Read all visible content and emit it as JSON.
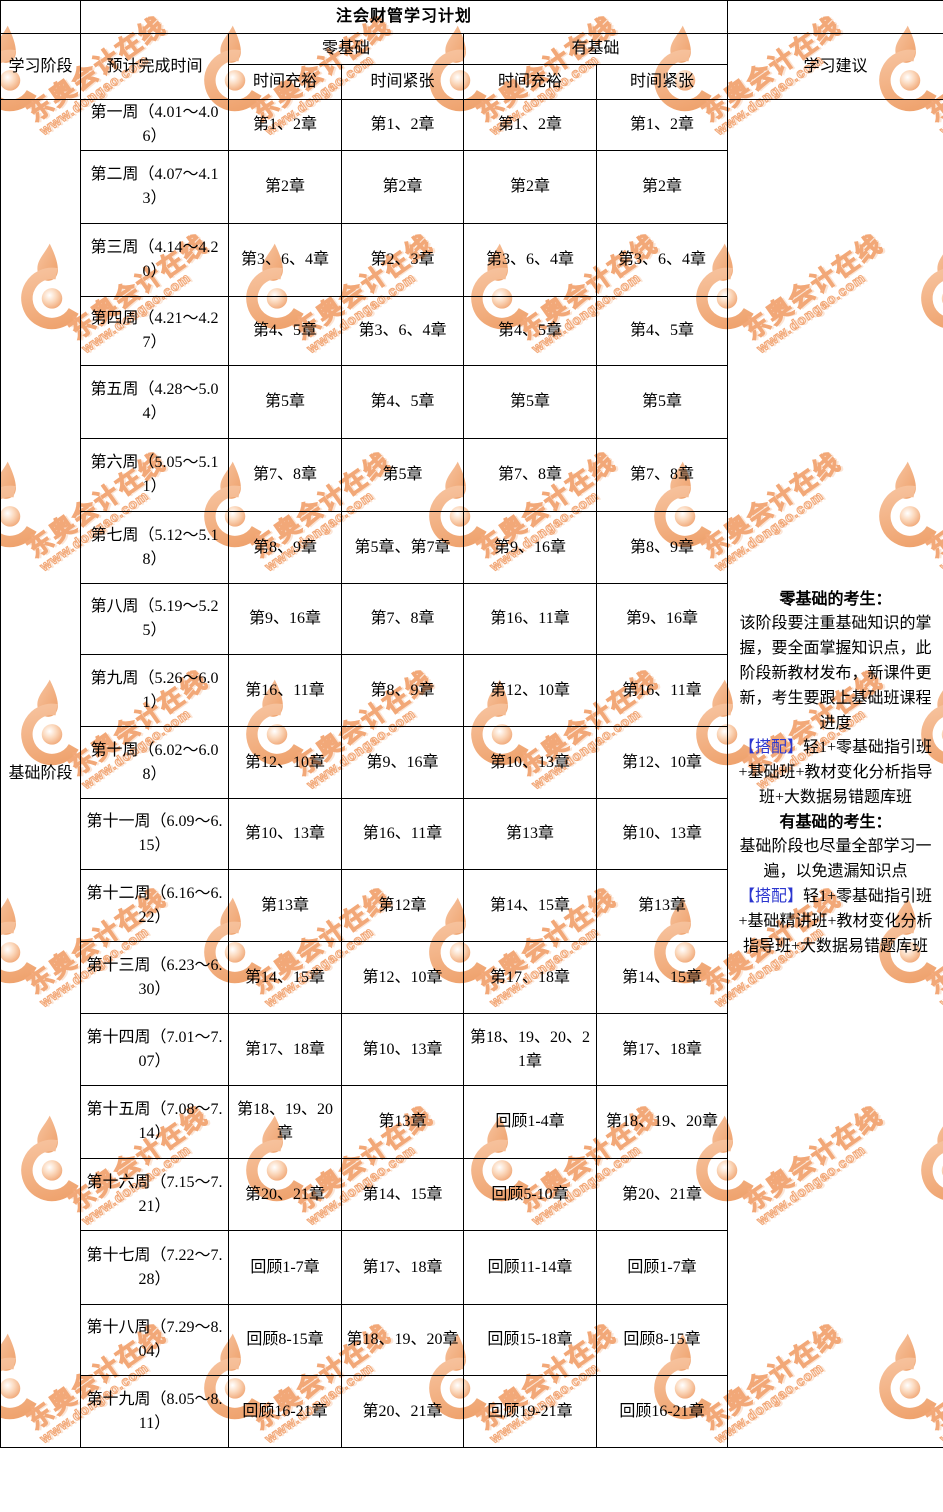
{
  "title": "注会财管学习计划",
  "headers": {
    "stage": "学习阶段",
    "expected_time": "预计完成时间",
    "zero_basis": "零基础",
    "with_basis": "有基础",
    "ample": "时间充裕",
    "tight": "时间紧张",
    "suggestion": "学习建议"
  },
  "stage_label": "基础阶段",
  "rows": [
    {
      "week": "第一周（4.01～4.06）",
      "cells": [
        "第1、2章",
        "第1、2章",
        "第1、2章",
        "第1、2章"
      ]
    },
    {
      "week": "第二周（4.07～4.13）",
      "cells": [
        "第2章",
        "第2章",
        "第2章",
        "第2章"
      ]
    },
    {
      "week": "第三周（4.14～4.20）",
      "cells": [
        "第3、6、4章",
        "第2、3章",
        "第3、6、4章",
        "第3、6、4章"
      ]
    },
    {
      "week": "第四周（4.21～4.27）",
      "cells": [
        "第4、5章",
        "第3、6、4章",
        "第4、5章",
        "第4、5章"
      ]
    },
    {
      "week": "第五周（4.28～5.04）",
      "cells": [
        "第5章",
        "第4、5章",
        "第5章",
        "第5章"
      ]
    },
    {
      "week": "第六周（5.05～5.11）",
      "cells": [
        "第7、8章",
        "第5章",
        "第7、8章",
        "第7、8章"
      ]
    },
    {
      "week": "第七周（5.12～5.18）",
      "cells": [
        "第8、9章",
        "第5章、第7章",
        "第9、16章",
        "第8、9章"
      ]
    },
    {
      "week": "第八周（5.19～5.25）",
      "cells": [
        "第9、16章",
        "第7、8章",
        "第16、11章",
        "第9、16章"
      ]
    },
    {
      "week": "第九周（5.26～6.01）",
      "cells": [
        "第16、11章",
        "第8、9章",
        "第12、10章",
        "第16、11章"
      ]
    },
    {
      "week": "第十周（6.02～6.08）",
      "cells": [
        "第12、10章",
        "第9、16章",
        "第10、13章",
        "第12、10章"
      ]
    },
    {
      "week": "第十一周（6.09～6.15）",
      "cells": [
        "第10、13章",
        "第16、11章",
        "第13章",
        "第10、13章"
      ]
    },
    {
      "week": "第十二周（6.16～6.22）",
      "cells": [
        "第13章",
        "第12章",
        "第14、15章",
        "第13章"
      ]
    },
    {
      "week": "第十三周（6.23～6.30）",
      "cells": [
        "第14、15章",
        "第12、10章",
        "第17、18章",
        "第14、15章"
      ]
    },
    {
      "week": "第十四周（7.01～7.07）",
      "cells": [
        "第17、18章",
        "第10、13章",
        "第18、19、20、21章",
        "第17、18章"
      ]
    },
    {
      "week": "第十五周（7.08～7.14）",
      "cells": [
        "第18、19、20章",
        "第13章",
        "回顾1-4章",
        "第18、19、20章"
      ]
    },
    {
      "week": "第十六周（7.15～7.21）",
      "cells": [
        "第20、21章",
        "第14、15章",
        "回顾5-10章",
        "第20、21章"
      ]
    },
    {
      "week": "第十七周（7.22～7.28）",
      "cells": [
        "回顾1-7章",
        "第17、18章",
        "回顾11-14章",
        "回顾1-7章"
      ]
    },
    {
      "week": "第十八周（7.29～8.04）",
      "cells": [
        "回顾8-15章",
        "第18、19、20章",
        "回顾15-18章",
        "回顾8-15章"
      ]
    },
    {
      "week": "第十九周（8.05～8.11）",
      "cells": [
        "回顾16-21章",
        "第20、21章",
        "回顾19-21章",
        "回顾16-21章"
      ]
    }
  ],
  "suggestions": {
    "zero_heading": "零基础的考生：",
    "zero_body": "该阶段要注重基础知识的掌握，要全面掌握知识点，此阶段新教材发布，新课件更新，考生要跟上基础班课程进度",
    "zero_match_label": "【搭配】",
    "zero_match": "轻1+零基础指引班+基础班+教材变化分析指导班+大数据易错题库班",
    "have_heading": "有基础的考生：",
    "have_body": "基础阶段也尽量全部学习一遍，以免遗漏知识点",
    "have_match_label": "【搭配】",
    "have_match": "轻1+零基础指引班+基础精讲班+教材变化分析指导班+大数据易错题库班"
  },
  "watermark": {
    "brand": "东奥会计在线",
    "site": "www.dongao.com",
    "color": "#f2a878"
  },
  "colors": {
    "border": "#000000",
    "text": "#000000",
    "match_blue": "#2b36cf",
    "watermark_orange": "#f2a878"
  }
}
